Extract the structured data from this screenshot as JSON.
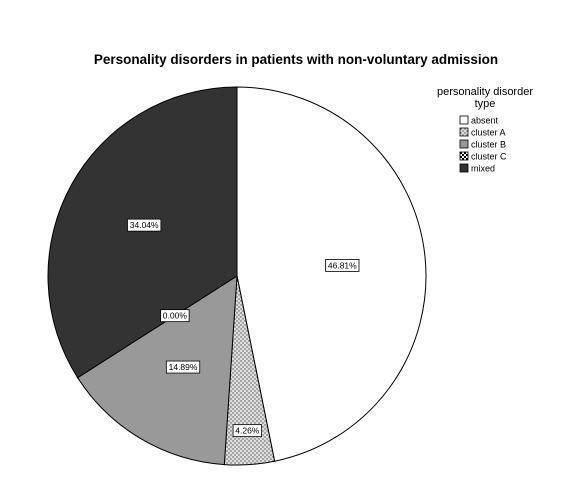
{
  "chart_data": {
    "type": "pie",
    "title": "Personality disorders in patients with non-voluntary admission",
    "legend": {
      "title_lines": [
        "personality disorder",
        "type"
      ],
      "position": "top-right"
    },
    "slices": [
      {
        "label": "absent",
        "value": 46.81,
        "display": "46.81%",
        "color": "#ffffff",
        "pattern": "none"
      },
      {
        "label": "cluster A",
        "value": 4.26,
        "display": "4.26%",
        "color": "#d9d9d9",
        "pattern": "dots"
      },
      {
        "label": "cluster B",
        "value": 14.89,
        "display": "14.89%",
        "color": "#999999",
        "pattern": "none"
      },
      {
        "label": "cluster C",
        "value": 0.0,
        "display": "0.00%",
        "color": "#ffffff",
        "pattern": "checker"
      },
      {
        "label": "mixed",
        "value": 34.04,
        "display": "34.04%",
        "color": "#333333",
        "pattern": "none"
      }
    ],
    "start_angle_deg": 0,
    "direction": "clockwise"
  }
}
